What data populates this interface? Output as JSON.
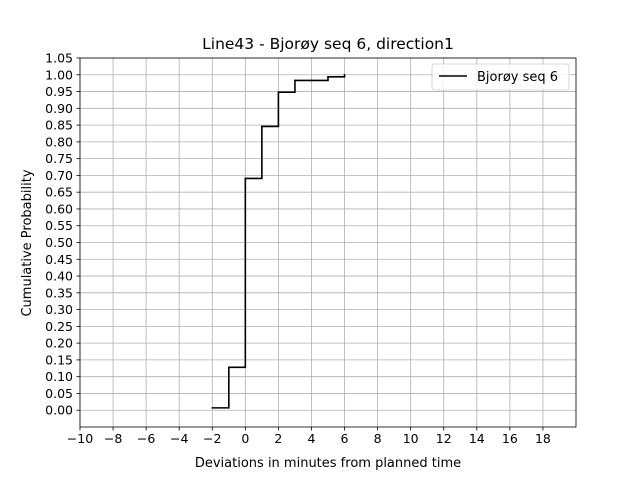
{
  "chart_data": {
    "type": "line",
    "step": "post",
    "title": "Line43 - Bjorøy seq 6, direction1",
    "xlabel": "Deviations in minutes from planned time",
    "ylabel": "Cumulative Probability",
    "xlim": [
      -10,
      20
    ],
    "ylim": [
      -0.05,
      1.05
    ],
    "xticks": [
      -10,
      -8,
      -6,
      -4,
      -2,
      0,
      2,
      4,
      6,
      8,
      10,
      12,
      14,
      16,
      18
    ],
    "xtick_labels": [
      "−10",
      "−8",
      "−6",
      "−4",
      "−2",
      "0",
      "2",
      "4",
      "6",
      "8",
      "10",
      "12",
      "14",
      "16",
      "18"
    ],
    "yticks": [
      0.0,
      0.05,
      0.1,
      0.15,
      0.2,
      0.25,
      0.3,
      0.35,
      0.4,
      0.45,
      0.5,
      0.55,
      0.6,
      0.65,
      0.7,
      0.75,
      0.8,
      0.85,
      0.9,
      0.95,
      1.0,
      1.05
    ],
    "ytick_labels": [
      "0.00",
      "0.05",
      "0.10",
      "0.15",
      "0.20",
      "0.25",
      "0.30",
      "0.35",
      "0.40",
      "0.45",
      "0.50",
      "0.55",
      "0.60",
      "0.65",
      "0.70",
      "0.75",
      "0.80",
      "0.85",
      "0.90",
      "0.95",
      "1.00",
      "1.05"
    ],
    "grid": true,
    "legend_position": "upper right",
    "series": [
      {
        "name": "Bjorøy seq 6",
        "color": "#000000",
        "x": [
          -2,
          -1,
          0,
          1,
          2,
          3,
          4,
          5,
          6
        ],
        "y": [
          0.007,
          0.128,
          0.691,
          0.846,
          0.948,
          0.983,
          0.983,
          0.994,
          1.0
        ]
      }
    ]
  }
}
